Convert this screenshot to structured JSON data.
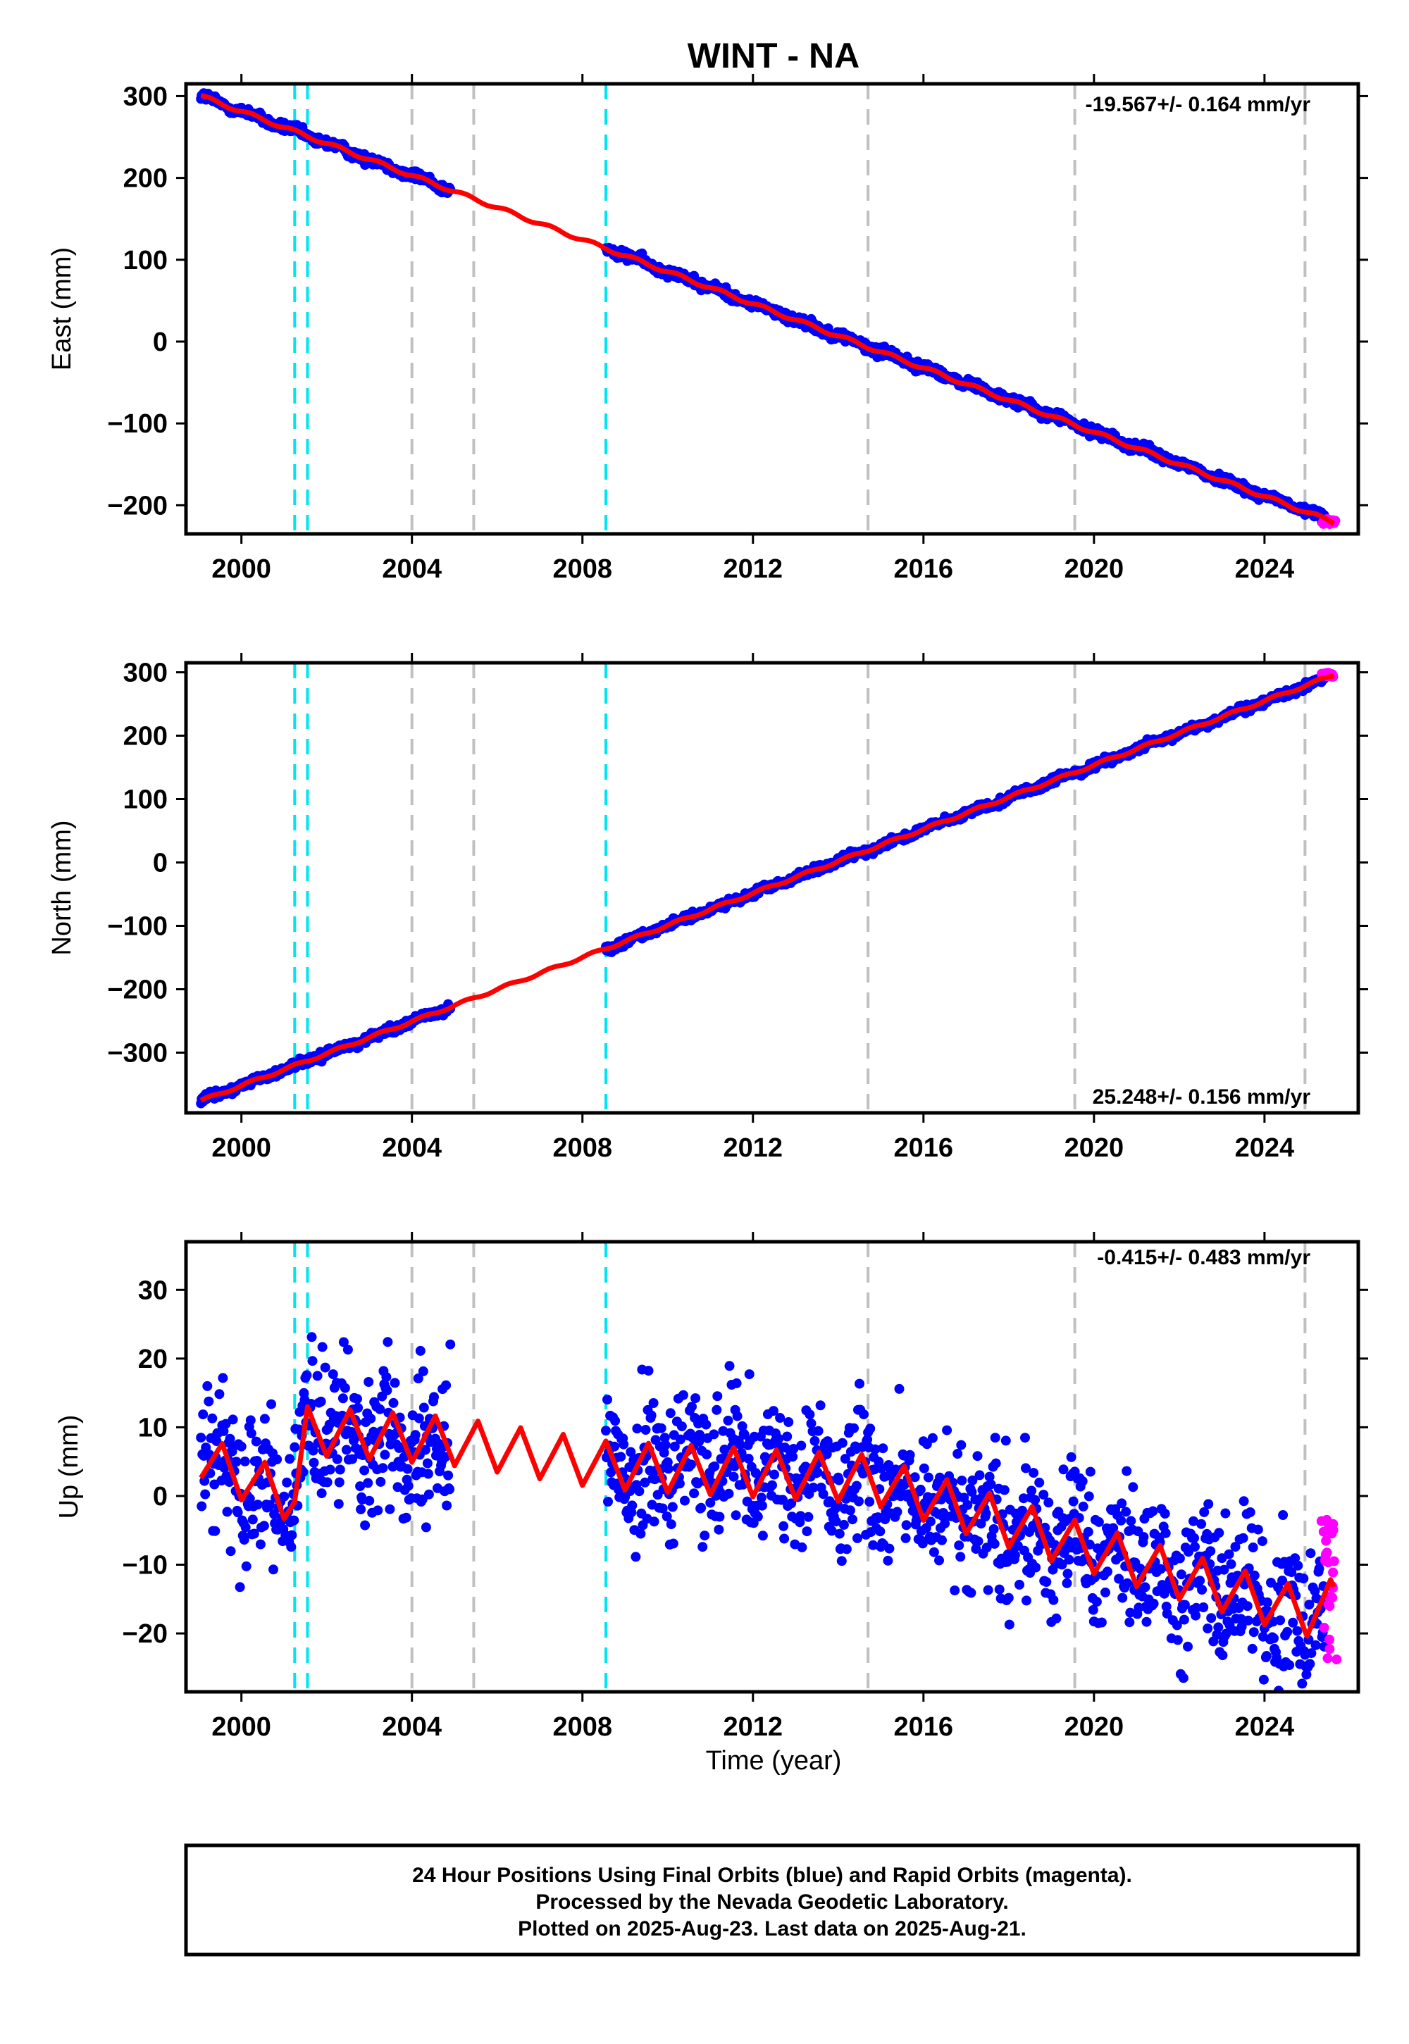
{
  "chart_title": "WINT - NA",
  "x_axis_label": "Time (year)",
  "footer": {
    "line1": "24 Hour Positions Using Final Orbits (blue) and Rapid Orbits (magenta).",
    "line2": "Processed by the Nevada Geodetic Laboratory.",
    "line3": "Plotted on 2025-Aug-23. Last data on 2025-Aug-21."
  },
  "colors": {
    "final_orbits": "#0000ff",
    "rapid_orbits": "#ff00ff",
    "model_fit": "#ff0000",
    "equipment_change": "#00e5ee",
    "earthquake_event": "#c0c0c0"
  },
  "chart_data": [
    {
      "type": "scatter",
      "component": "East",
      "ylabel": "East (mm)",
      "rate_label": "-19.567+/- 0.164 mm/yr",
      "xlim": [
        1998.7,
        2026.2
      ],
      "ylim": [
        -235,
        315
      ],
      "xticks": [
        2000,
        2004,
        2008,
        2012,
        2016,
        2020,
        2024
      ],
      "yticks": [
        -200,
        -100,
        0,
        100,
        200,
        300
      ],
      "grid": false,
      "series": [
        {
          "name": "Final Orbits",
          "color": "blue",
          "segments": [
            [
              1999.05,
              2004.9
            ],
            [
              2008.55,
              2025.4
            ]
          ],
          "y_start": 300,
          "slope_mm_per_yr": -19.567,
          "scatter_mm": 3
        },
        {
          "name": "Rapid Orbits",
          "color": "magenta",
          "x_range": [
            2025.4,
            2025.63
          ],
          "y_value": -220
        },
        {
          "name": "Model",
          "color": "red",
          "x_range": [
            1999.05,
            2025.63
          ],
          "y_start": 300,
          "y_end": -221,
          "annual_amplitude_mm": 2
        }
      ],
      "vertical_lines": {
        "cyan": [
          2001.25,
          2001.55,
          2008.55
        ],
        "gray": [
          2004.0,
          2005.45,
          2014.7,
          2019.55,
          2024.95
        ]
      }
    },
    {
      "type": "scatter",
      "component": "North",
      "ylabel": "North (mm)",
      "rate_label": "25.248+/- 0.156 mm/yr",
      "xlim": [
        1998.7,
        2026.2
      ],
      "ylim": [
        -395,
        315
      ],
      "xticks": [
        2000,
        2004,
        2008,
        2012,
        2016,
        2020,
        2024
      ],
      "yticks": [
        -300,
        -200,
        -100,
        0,
        100,
        200,
        300
      ],
      "grid": false,
      "series": [
        {
          "name": "Final Orbits",
          "color": "blue",
          "segments": [
            [
              1999.05,
              2004.9
            ],
            [
              2008.55,
              2025.4
            ]
          ],
          "y_start": -376,
          "slope_mm_per_yr": 25.248,
          "scatter_mm": 3
        },
        {
          "name": "Rapid Orbits",
          "color": "magenta",
          "x_range": [
            2025.4,
            2025.63
          ],
          "y_value": 296
        },
        {
          "name": "Model",
          "color": "red",
          "x_range": [
            1999.05,
            2025.63
          ],
          "y_start": -376,
          "y_end": 296,
          "annual_amplitude_mm": 2
        }
      ],
      "vertical_lines": {
        "cyan": [
          2001.25,
          2001.55,
          2008.55
        ],
        "gray": [
          2004.0,
          2005.45,
          2014.7,
          2019.55,
          2024.95
        ]
      }
    },
    {
      "type": "scatter",
      "component": "Up",
      "ylabel": "Up (mm)",
      "rate_label": "-0.415+/- 0.483 mm/yr",
      "xlim": [
        1998.7,
        2026.2
      ],
      "ylim": [
        -28.5,
        37
      ],
      "xticks": [
        2000,
        2004,
        2008,
        2012,
        2016,
        2020,
        2024
      ],
      "yticks": [
        -20,
        -10,
        0,
        10,
        20,
        30
      ],
      "grid": false,
      "series": [
        {
          "name": "Final Orbits",
          "color": "blue",
          "segments": [
            [
              1999.05,
              2004.9
            ],
            [
              2008.55,
              2025.4
            ]
          ],
          "scatter_mm": 5
        },
        {
          "name": "Rapid Orbits",
          "color": "magenta",
          "x_range": [
            2025.4,
            2025.63
          ],
          "y_range": [
            -24.5,
            -2.5
          ]
        },
        {
          "name": "Model",
          "color": "red",
          "x_range": [
            1999.05,
            2025.63
          ],
          "annual_amplitude_mm": 3.5,
          "offsets": [
            [
              1999.05,
              5.5
            ],
            [
              2001.25,
              -0.5
            ],
            [
              2001.55,
              9.5
            ],
            [
              2004.9,
              8
            ],
            [
              2005.45,
              7.5
            ],
            [
              2008.55,
              4.5
            ],
            [
              2014.7,
              2.5
            ],
            [
              2019.55,
              -7
            ],
            [
              2024.95,
              -17
            ],
            [
              2025.63,
              -15.5
            ]
          ]
        }
      ],
      "vertical_lines": {
        "cyan": [
          2001.25,
          2001.55,
          2008.55
        ],
        "gray": [
          2004.0,
          2005.45,
          2014.7,
          2019.55,
          2024.95
        ]
      }
    }
  ]
}
